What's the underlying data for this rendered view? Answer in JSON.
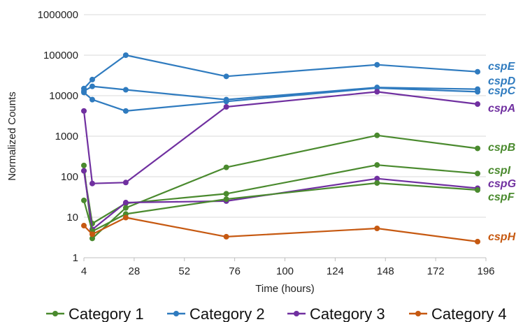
{
  "chart_data": {
    "type": "line",
    "xlabel": "Time (hours)",
    "ylabel": "Normalized Counts",
    "xlim": [
      4,
      196
    ],
    "xticks": [
      4,
      28,
      52,
      76,
      100,
      124,
      148,
      172,
      196
    ],
    "ylim": [
      1,
      1000000
    ],
    "yscale": "log",
    "yticks": [
      1,
      10,
      100,
      1000,
      10000,
      100000,
      1000000
    ],
    "grid": "horizontal",
    "legend_position": "bottom",
    "x": [
      4,
      8,
      24,
      72,
      144,
      192
    ],
    "categories_legend": [
      {
        "name": "Category 1",
        "color": "#4a8a2e"
      },
      {
        "name": "Category 2",
        "color": "#2f7bbf"
      },
      {
        "name": "Category 3",
        "color": "#7030a0"
      },
      {
        "name": "Category 4",
        "color": "#c65911"
      }
    ],
    "series": [
      {
        "name": "cspE",
        "category": "Category 2",
        "color": "#2f7bbf",
        "values": [
          15000,
          25000,
          100000,
          30000,
          58000,
          39000
        ]
      },
      {
        "name": "cspD",
        "category": "Category 2",
        "color": "#2f7bbf",
        "values": [
          13000,
          17000,
          14000,
          8000,
          16000,
          14500
        ]
      },
      {
        "name": "cspC",
        "category": "Category 2",
        "color": "#2f7bbf",
        "values": [
          12000,
          8000,
          4200,
          7200,
          15500,
          12500
        ]
      },
      {
        "name": "cspA",
        "category": "Category 3",
        "color": "#7030a0",
        "values": [
          4200,
          68,
          72,
          5300,
          12500,
          6200
        ]
      },
      {
        "name": "cspB",
        "category": "Category 1",
        "color": "#4a8a2e",
        "values": [
          190,
          3,
          17,
          170,
          1050,
          500
        ]
      },
      {
        "name": "cspI",
        "category": "Category 1",
        "color": "#4a8a2e",
        "values": [
          140,
          7,
          22,
          38,
          195,
          120
        ]
      },
      {
        "name": "cspG",
        "category": "Category 3",
        "color": "#7030a0",
        "values": [
          140,
          5,
          23,
          25,
          90,
          52
        ]
      },
      {
        "name": "cspF",
        "category": "Category 1",
        "color": "#4a8a2e",
        "values": [
          26,
          4.5,
          12,
          28,
          70,
          47
        ]
      },
      {
        "name": "cspH",
        "category": "Category 4",
        "color": "#c65911",
        "values": [
          6.2,
          3.8,
          9.8,
          3.3,
          5.3,
          2.5
        ]
      }
    ]
  }
}
